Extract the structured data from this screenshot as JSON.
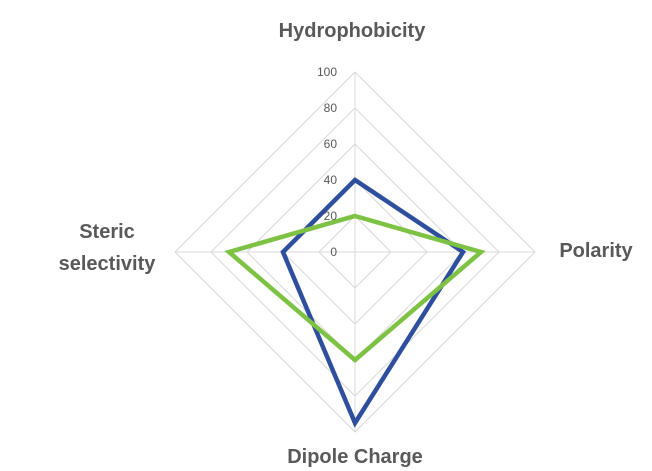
{
  "chart_data": {
    "type": "radar",
    "axes": [
      "Hydrophobicity",
      "Polarity",
      "Dipole Charge",
      "Steric selectivity"
    ],
    "axis_label_lines": [
      [
        "Hydrophobicity"
      ],
      [
        "Polarity"
      ],
      [
        "Dipole Charge"
      ],
      [
        "Steric",
        "selectivity"
      ]
    ],
    "ticks": [
      "0",
      "20",
      "40",
      "60",
      "80",
      "100"
    ],
    "range": [
      0,
      100
    ],
    "series": [
      {
        "values": [
          40,
          60,
          95,
          40
        ],
        "color": "#2e4e9e"
      },
      {
        "values": [
          20,
          70,
          60,
          70
        ],
        "color": "#7dc242"
      }
    ],
    "grid": true,
    "legend": "none"
  }
}
